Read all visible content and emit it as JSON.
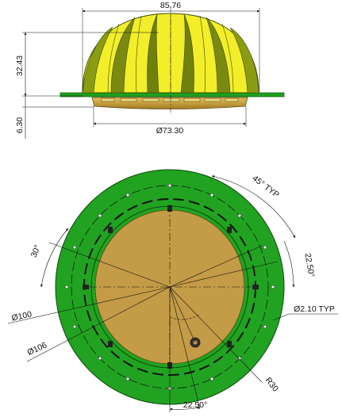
{
  "side_view": {
    "width_dim": "85.76",
    "height_dim": "32.43",
    "base_height_dim": "6.30",
    "base_diameter_dim": "Ø73.30"
  },
  "top_view": {
    "angle_45": "45° TYP",
    "angle_30": "30°",
    "angle_22_right": "22.50°",
    "angle_22_bottom": "22.50°",
    "dia_100": "Ø100",
    "dia_106": "Ø106",
    "hole_dia": "Ø2.10 TYP",
    "radius_30": "R30"
  },
  "colors": {
    "dome_yellow": "#f2ee2a",
    "dome_dark": "#7a8a10",
    "flange_green": "#1ea01e",
    "base_gold": "#c29a38",
    "ring_green": "#21a321",
    "disc_tan": "#c49b46"
  }
}
